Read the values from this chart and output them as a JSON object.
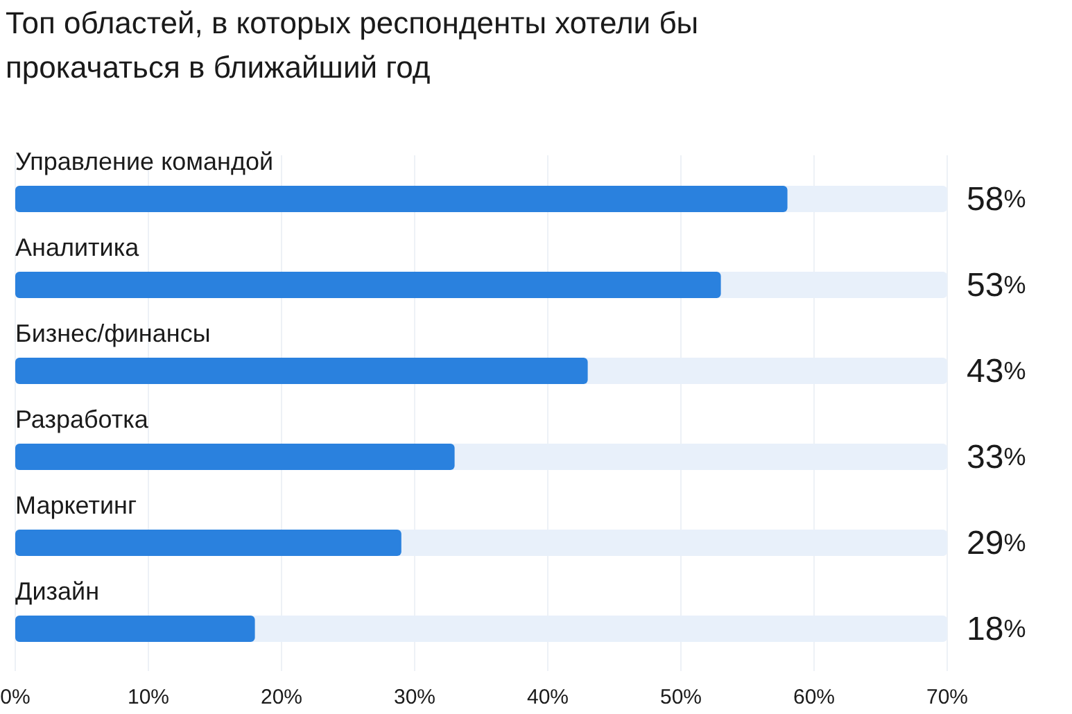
{
  "chart_data": {
    "type": "bar",
    "orientation": "horizontal",
    "title": "Топ областей, в которых респонденты хотели бы прокачаться в ближайший год",
    "categories": [
      "Управление командой",
      "Аналитика",
      "Бизнес/финансы",
      "Разработка",
      "Маркетинг",
      "Дизайн"
    ],
    "values": [
      58,
      53,
      43,
      33,
      29,
      18
    ],
    "color": "#2a81de",
    "value_labels": [
      "58%",
      "53%",
      "43%",
      "33%",
      "29%",
      "18%"
    ],
    "xlim": [
      0,
      70
    ],
    "xticks": [
      {
        "value": 0,
        "label": "0%"
      },
      {
        "value": 10,
        "label": "10%"
      },
      {
        "value": 20,
        "label": "20%"
      },
      {
        "value": 30,
        "label": "30%"
      },
      {
        "value": 40,
        "label": "40%"
      },
      {
        "value": 50,
        "label": "50%"
      },
      {
        "value": 60,
        "label": "60%"
      },
      {
        "value": 70,
        "label": "70%"
      }
    ],
    "grid": "x"
  }
}
